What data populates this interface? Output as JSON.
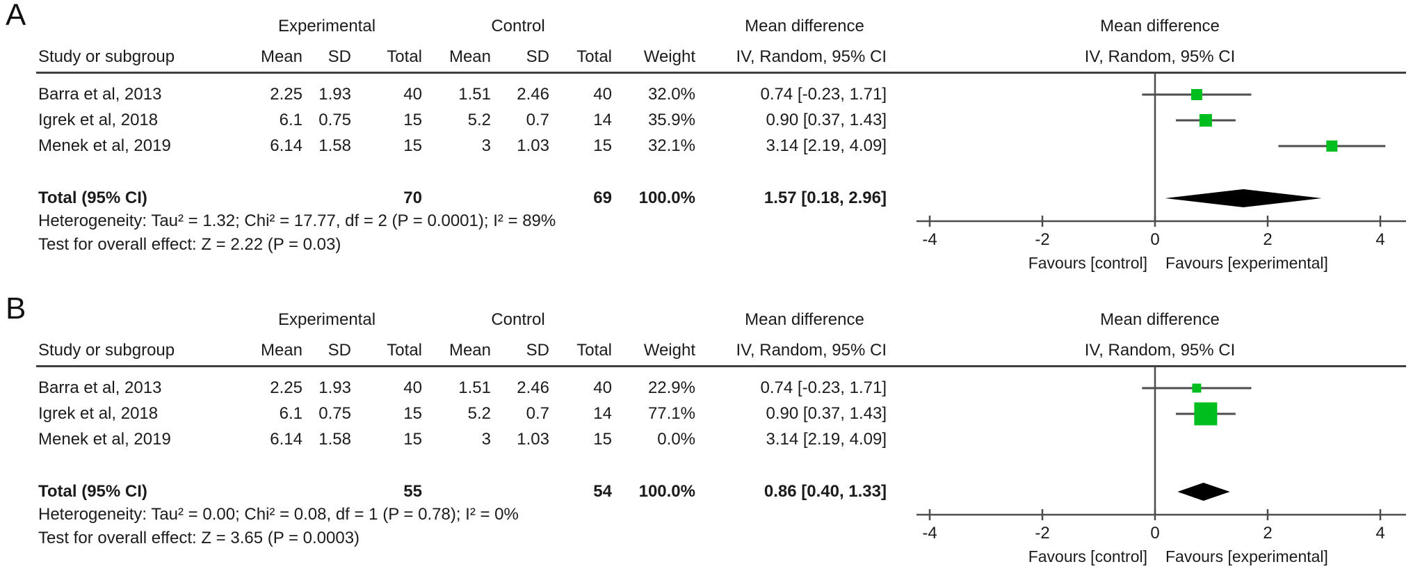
{
  "colors": {
    "marker_green": "#00be1e",
    "diamond_black": "#000000",
    "line_gray": "#4d4d4d",
    "text_black": "#1b1b1b"
  },
  "figure": {
    "panels": [
      {
        "label": "A",
        "plot_header": [
          "Mean difference",
          "IV, Random, 95% CI"
        ],
        "table": {
          "group_headers": [
            "Experimental",
            "Control",
            "Mean difference"
          ],
          "col_headers": [
            "Study or subgroup",
            "Mean",
            "SD",
            "Total",
            "Mean",
            "SD",
            "Total",
            "Weight",
            "IV, Random, 95% CI"
          ],
          "rows": [
            {
              "study": "Barra et al, 2013",
              "exp_mean": "2.25",
              "exp_sd": "1.93",
              "exp_total": "40",
              "ctrl_mean": "1.51",
              "ctrl_sd": "2.46",
              "ctrl_total": "40",
              "weight": "32.0%",
              "ci_text": "0.74 [-0.23, 1.71]"
            },
            {
              "study": "Igrek et al, 2018",
              "exp_mean": "6.1",
              "exp_sd": "0.75",
              "exp_total": "15",
              "ctrl_mean": "5.2",
              "ctrl_sd": "0.7",
              "ctrl_total": "14",
              "weight": "35.9%",
              "ci_text": "0.90 [0.37, 1.43]"
            },
            {
              "study": "Menek et al, 2019",
              "exp_mean": "6.14",
              "exp_sd": "1.58",
              "exp_total": "15",
              "ctrl_mean": "3",
              "ctrl_sd": "1.03",
              "ctrl_total": "15",
              "weight": "32.1%",
              "ci_text": "3.14 [2.19, 4.09]"
            }
          ],
          "total": {
            "label": "Total (95% CI)",
            "exp_total": "70",
            "ctrl_total": "69",
            "weight": "100.0%",
            "ci_text": "1.57 [0.18, 2.96]"
          },
          "heterogeneity": "Heterogeneity: Tau² = 1.32; Chi² = 17.77, df = 2 (P = 0.0001); I² = 89%",
          "overall_effect": "Test for overall effect: Z = 2.22 (P = 0.03)"
        }
      },
      {
        "label": "B",
        "plot_header": [
          "Mean difference",
          "IV, Random, 95% CI"
        ],
        "table": {
          "group_headers": [
            "Experimental",
            "Control",
            "Mean difference"
          ],
          "col_headers": [
            "Study or subgroup",
            "Mean",
            "SD",
            "Total",
            "Mean",
            "SD",
            "Total",
            "Weight",
            "IV, Random, 95% CI"
          ],
          "rows": [
            {
              "study": "Barra et al, 2013",
              "exp_mean": "2.25",
              "exp_sd": "1.93",
              "exp_total": "40",
              "ctrl_mean": "1.51",
              "ctrl_sd": "2.46",
              "ctrl_total": "40",
              "weight": "22.9%",
              "ci_text": "0.74 [-0.23, 1.71]"
            },
            {
              "study": "Igrek et al, 2018",
              "exp_mean": "6.1",
              "exp_sd": "0.75",
              "exp_total": "15",
              "ctrl_mean": "5.2",
              "ctrl_sd": "0.7",
              "ctrl_total": "14",
              "weight": "77.1%",
              "ci_text": "0.90 [0.37, 1.43]"
            },
            {
              "study": "Menek et al, 2019",
              "exp_mean": "6.14",
              "exp_sd": "1.58",
              "exp_total": "15",
              "ctrl_mean": "3",
              "ctrl_sd": "1.03",
              "ctrl_total": "15",
              "weight": "0.0%",
              "ci_text": "3.14 [2.19, 4.09]"
            }
          ],
          "total": {
            "label": "Total (95% CI)",
            "exp_total": "55",
            "ctrl_total": "54",
            "weight": "100.0%",
            "ci_text": "0.86 [0.40, 1.33]"
          },
          "heterogeneity": "Heterogeneity: Tau² = 0.00; Chi² = 0.08, df = 1 (P = 0.78); I² = 0%",
          "overall_effect": "Test for overall effect: Z = 3.65 (P = 0.0003)"
        }
      }
    ]
  },
  "chart_data": [
    {
      "type": "forest",
      "panel": "A",
      "title": "Mean difference",
      "subtitle": "IV, Random, 95% CI",
      "effect_measure": "Mean difference, IV, Random, 95% CI",
      "x_ticks": [
        -4,
        -2,
        0,
        2,
        4
      ],
      "x_tick_labels": [
        "-4",
        "-2",
        "0",
        "2",
        "4"
      ],
      "xlim": [
        -4.25,
        4.45
      ],
      "x_axis_labels": [
        "Favours [control]",
        "Favours [experimental]"
      ],
      "studies": [
        {
          "name": "Barra et al, 2013",
          "md": 0.74,
          "ci_low": -0.23,
          "ci_high": 1.71,
          "weight": 32.0
        },
        {
          "name": "Igrek et al, 2018",
          "md": 0.9,
          "ci_low": 0.37,
          "ci_high": 1.43,
          "weight": 35.9
        },
        {
          "name": "Menek et al, 2019",
          "md": 3.14,
          "ci_low": 2.19,
          "ci_high": 4.09,
          "weight": 32.1
        }
      ],
      "total": {
        "md": 1.57,
        "ci_low": 0.18,
        "ci_high": 2.96,
        "weight": 100.0
      }
    },
    {
      "type": "forest",
      "panel": "B",
      "title": "Mean difference",
      "subtitle": "IV, Random, 95% CI",
      "effect_measure": "Mean difference, IV, Random, 95% CI",
      "x_ticks": [
        -4,
        -2,
        0,
        2,
        4
      ],
      "x_tick_labels": [
        "-4",
        "-2",
        "0",
        "2",
        "4"
      ],
      "xlim": [
        -4.25,
        4.45
      ],
      "x_axis_labels": [
        "Favours [control]",
        "Favours [experimental]"
      ],
      "studies": [
        {
          "name": "Barra et al, 2013",
          "md": 0.74,
          "ci_low": -0.23,
          "ci_high": 1.71,
          "weight": 22.9
        },
        {
          "name": "Igrek et al, 2018",
          "md": 0.9,
          "ci_low": 0.37,
          "ci_high": 1.43,
          "weight": 77.1
        },
        {
          "name": "Menek et al, 2019",
          "md": 3.14,
          "ci_low": 2.19,
          "ci_high": 4.09,
          "weight": 0.0
        }
      ],
      "total": {
        "md": 0.86,
        "ci_low": 0.4,
        "ci_high": 1.33,
        "weight": 100.0
      }
    }
  ]
}
